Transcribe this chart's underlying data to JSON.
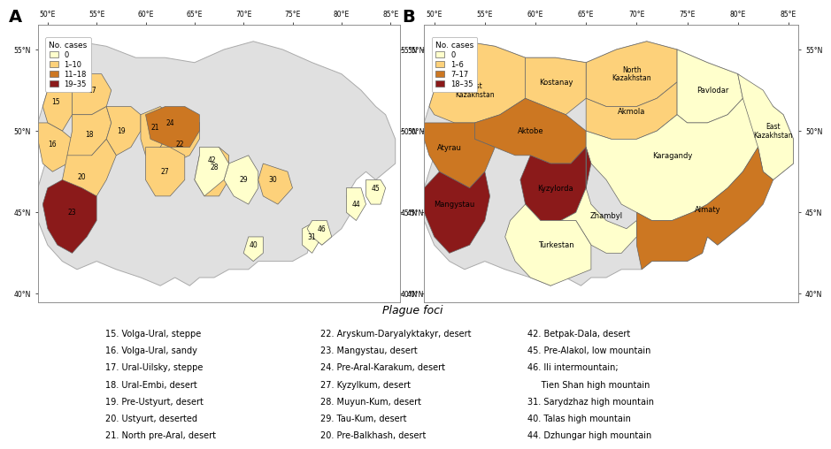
{
  "title_A": "A",
  "title_B": "B",
  "color_0": "#ffffcc",
  "color_1_10": "#fdd17a",
  "color_11_18": "#cc7722",
  "color_19_35": "#8b1a1a",
  "color_nodata": "#e0e0e0",
  "color_border": "#888888",
  "legend_A": {
    "title": "No. cases",
    "entries": [
      "0",
      "1–10",
      "11–18",
      "19–35"
    ]
  },
  "legend_B": {
    "title": "No. cases",
    "entries": [
      "0",
      "1–6",
      "7–17",
      "18–35"
    ]
  },
  "plague_foci_title": "Plague foci",
  "plague_foci_col1": [
    "15. Volga-Ural, steppe",
    "16. Volga-Ural, sandy",
    "17. Ural-Uilsky, steppe",
    "18. Ural-Embi, desert",
    "19. Pre-Ustyurt, desert",
    "20. Ustyurt, deserted",
    "21. North pre-Aral, desert"
  ],
  "plague_foci_col2": [
    "22. Aryskum-Daryalyktakyr, desert",
    "23. Mangystau, desert",
    "24. Pre-Aral-Karakum, desert",
    "27. Kyzylkum, desert",
    "28. Muyun-Kum, desert",
    "29. Tau-Kum, desert",
    "20. Pre-Balkhash, desert"
  ],
  "plague_foci_col3": [
    "42. Betpak-Dala, desert",
    "45. Pre-Alakol, low mountain",
    "46. Ili intermountain;",
    "    Tien Shan high mountain",
    "31. Sarydzhaz high mountain",
    "40. Talas high mountain",
    "44. Dzhungar high mountain"
  ]
}
